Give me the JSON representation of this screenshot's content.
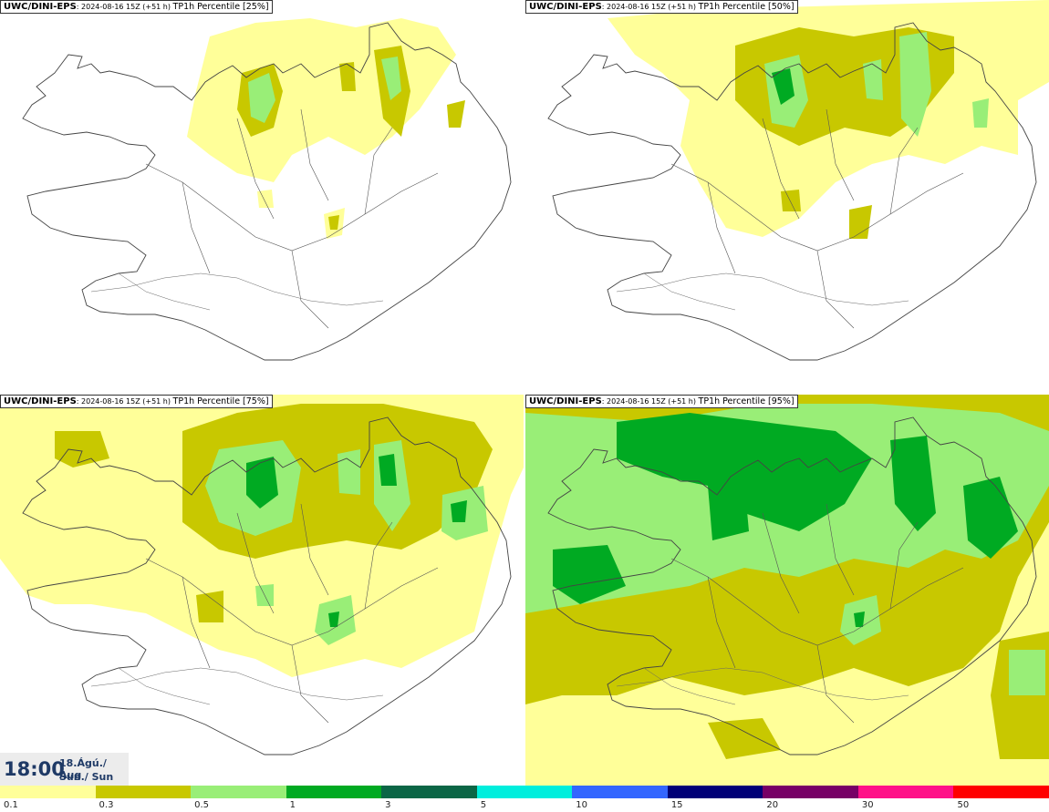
{
  "panels": [
    {
      "model": "UWC/DINI-EPS",
      "run": "2024-08-16 15Z (+51 h)",
      "variable": "TP1h Percentile [25%]"
    },
    {
      "model": "UWC/DINI-EPS",
      "run": "2024-08-16 15Z (+51 h)",
      "variable": "TP1h Percentile [50%]"
    },
    {
      "model": "UWC/DINI-EPS",
      "run": "2024-08-16 15Z (+51 h)",
      "variable": "TP1h Percentile [75%]"
    },
    {
      "model": "UWC/DINI-EPS",
      "run": "2024-08-16 15Z (+51 h)",
      "variable": "TP1h Percentile [95%]"
    }
  ],
  "valid_time": {
    "time": "18:00",
    "date_line1": "18.Ágú./ Aug",
    "date_line2": "Sun./ Sun"
  },
  "legend": {
    "colors": [
      "#ffff99",
      "#c8c800",
      "#99ee77",
      "#00aa22",
      "#0b6646",
      "#00eedd",
      "#3366ff",
      "#000077",
      "#770066",
      "#ff1188",
      "#ff0000"
    ],
    "tick_labels": [
      "0.1",
      "0.3",
      "0.5",
      "1",
      "3",
      "5",
      "10",
      "15",
      "20",
      "30",
      "50"
    ]
  }
}
